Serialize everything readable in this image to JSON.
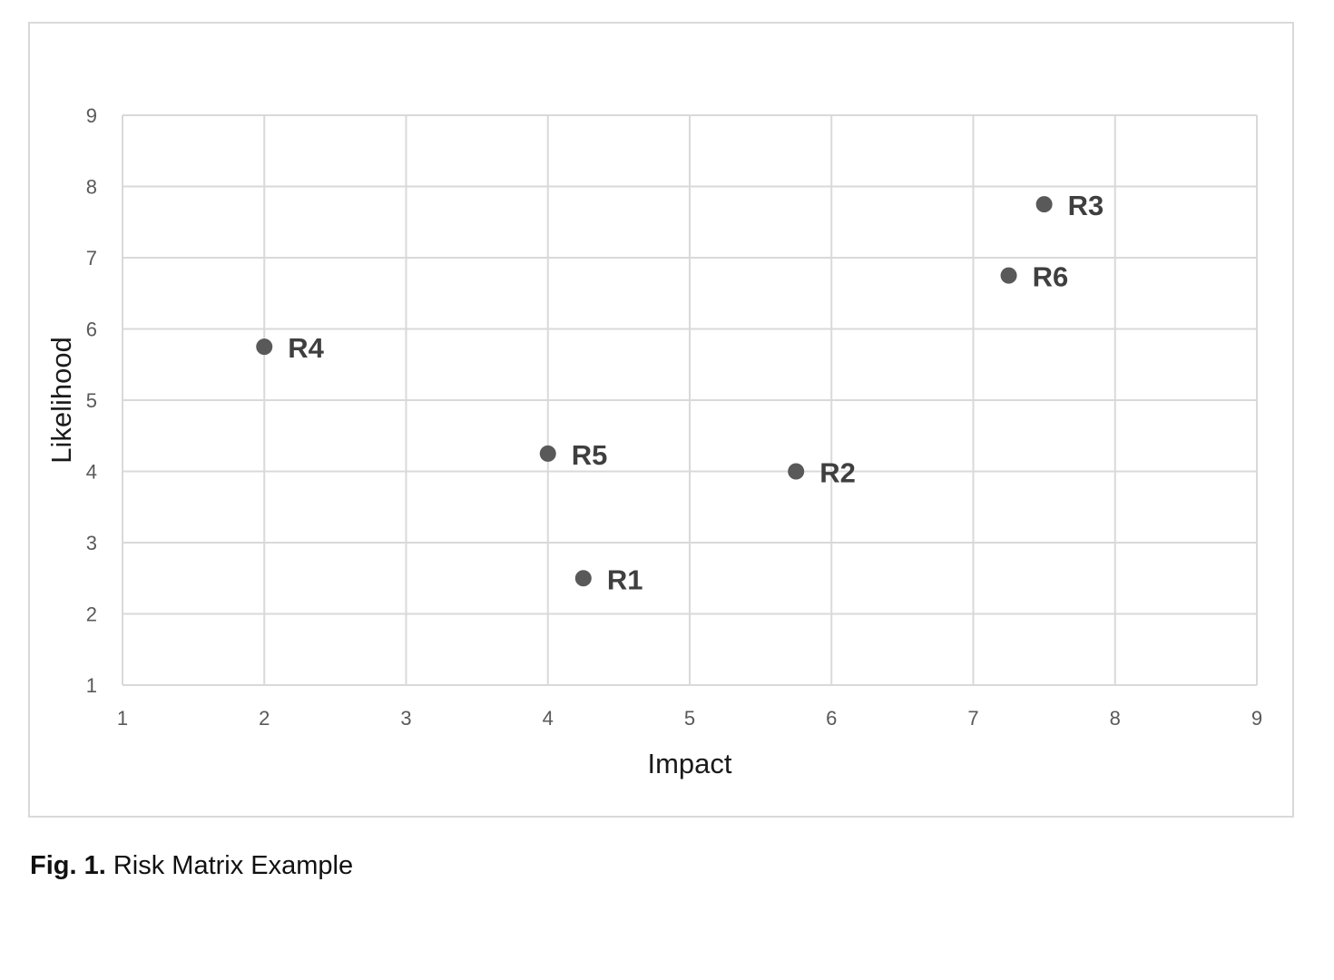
{
  "chart_data": {
    "type": "scatter",
    "title": "",
    "xlabel": "Impact",
    "ylabel": "Likelihood",
    "xlim": [
      1,
      9
    ],
    "ylim": [
      1,
      9
    ],
    "x_ticks": [
      1,
      2,
      3,
      4,
      5,
      6,
      7,
      8,
      9
    ],
    "y_ticks": [
      1,
      2,
      3,
      4,
      5,
      6,
      7,
      8,
      9
    ],
    "grid": true,
    "legend": "none",
    "marker_color": "#595959",
    "grid_color": "#d9d9d9",
    "points": [
      {
        "label": "R1",
        "x": 4.25,
        "y": 2.5
      },
      {
        "label": "R2",
        "x": 5.75,
        "y": 4.0
      },
      {
        "label": "R3",
        "x": 7.5,
        "y": 7.75
      },
      {
        "label": "R4",
        "x": 2.0,
        "y": 5.75
      },
      {
        "label": "R5",
        "x": 4.0,
        "y": 4.25
      },
      {
        "label": "R6",
        "x": 7.25,
        "y": 6.75
      }
    ]
  },
  "caption": {
    "label": "Fig. 1.",
    "text": "Risk Matrix Example"
  }
}
